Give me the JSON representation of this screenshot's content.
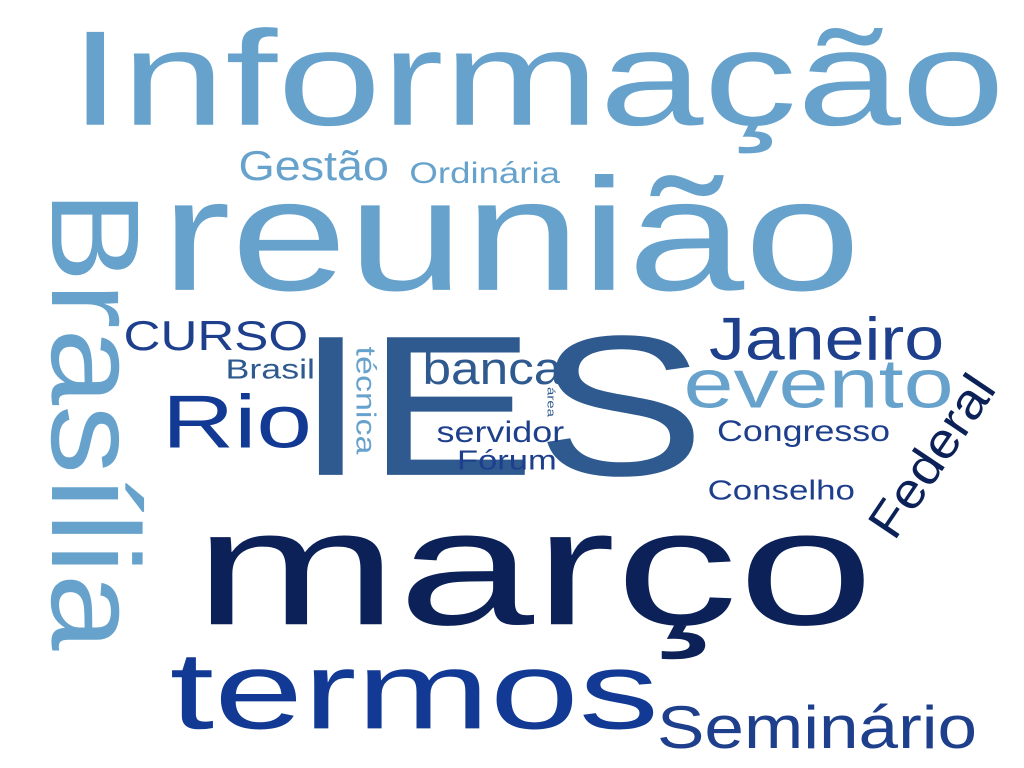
{
  "palette": {
    "light": "#67a2cc",
    "medium": "#2f5a8f",
    "dark": "#1e3f8c",
    "navy": "#0f2a6b",
    "deep": "#0b2158",
    "bright": "#123a94"
  },
  "words": [
    {
      "id": "informacao",
      "text": "Informação",
      "color": "light",
      "rotated": false
    },
    {
      "id": "reuniao",
      "text": "reunião",
      "color": "light",
      "rotated": false
    },
    {
      "id": "brasilia",
      "text": "Brasília",
      "color": "light",
      "rotated": true
    },
    {
      "id": "ies",
      "text": "IES",
      "color": "medium",
      "rotated": false
    },
    {
      "id": "marco",
      "text": "março",
      "color": "deep",
      "rotated": false
    },
    {
      "id": "termos",
      "text": "termos",
      "color": "bright",
      "rotated": false
    },
    {
      "id": "rio",
      "text": "Rio",
      "color": "bright",
      "rotated": false
    },
    {
      "id": "janeiro",
      "text": "Janeiro",
      "color": "dark",
      "rotated": false
    },
    {
      "id": "evento",
      "text": "evento",
      "color": "light",
      "rotated": false
    },
    {
      "id": "seminario",
      "text": "Seminário",
      "color": "dark",
      "rotated": false
    },
    {
      "id": "federal",
      "text": "Federal",
      "color": "deep",
      "rotated": true
    },
    {
      "id": "gestao",
      "text": "Gestão",
      "color": "light",
      "rotated": false
    },
    {
      "id": "ordinaria",
      "text": "Ordinária",
      "color": "light",
      "rotated": false
    },
    {
      "id": "curso",
      "text": "CURSO",
      "color": "dark",
      "rotated": false
    },
    {
      "id": "banca",
      "text": "banca",
      "color": "medium",
      "rotated": false
    },
    {
      "id": "brasil",
      "text": "Brasil",
      "color": "medium",
      "rotated": false
    },
    {
      "id": "tecnica",
      "text": "técnica",
      "color": "light",
      "rotated": true
    },
    {
      "id": "area",
      "text": "área",
      "color": "medium",
      "rotated": true
    },
    {
      "id": "servidor",
      "text": "servidor",
      "color": "dark",
      "rotated": false
    },
    {
      "id": "forum",
      "text": "Fórum",
      "color": "dark",
      "rotated": false
    },
    {
      "id": "congresso",
      "text": "Congresso",
      "color": "dark",
      "rotated": false
    },
    {
      "id": "conselho",
      "text": "Conselho",
      "color": "dark",
      "rotated": false
    }
  ]
}
